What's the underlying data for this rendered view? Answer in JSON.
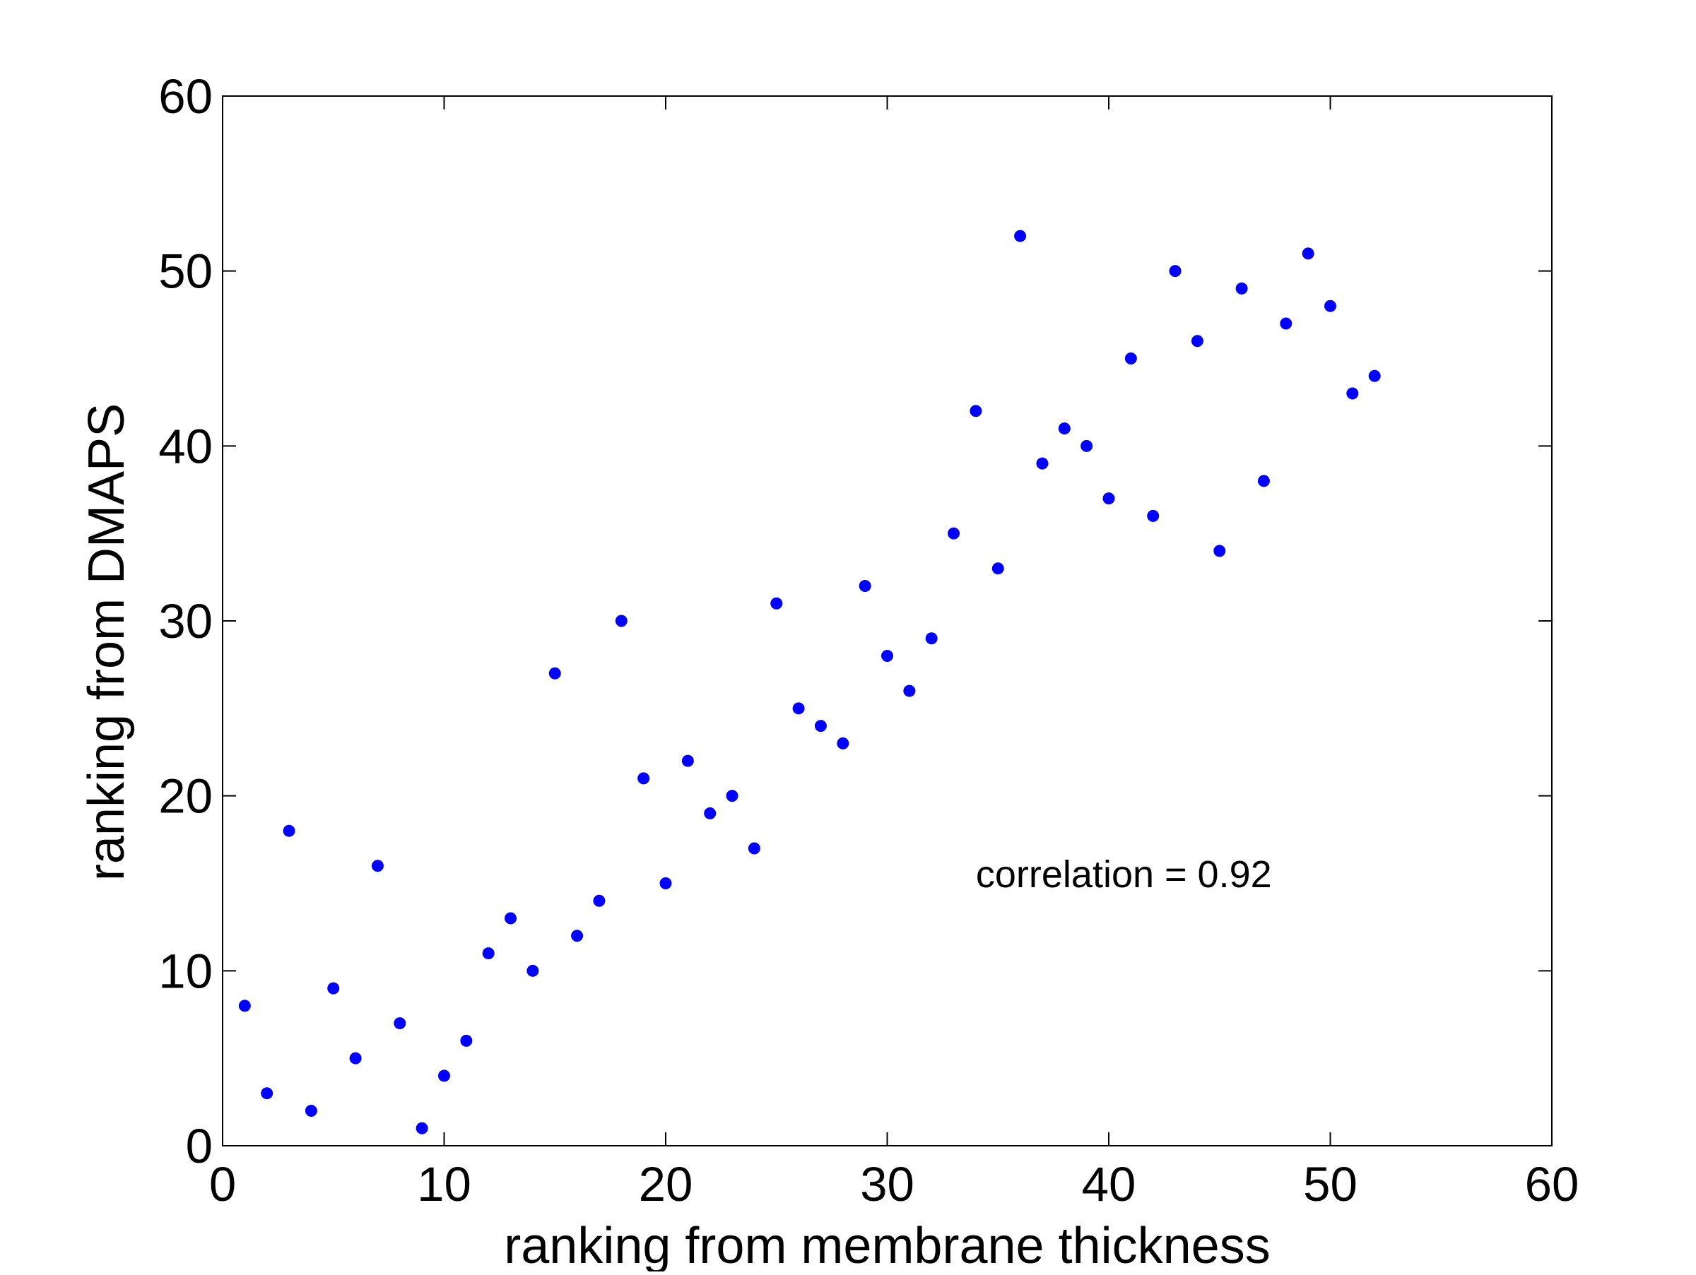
{
  "chart_data": {
    "type": "scatter",
    "title": "",
    "xlabel": "ranking from membrane thickness",
    "ylabel": "ranking from DMAPS",
    "xlim": [
      0,
      60
    ],
    "ylim": [
      0,
      60
    ],
    "x_ticks": [
      0,
      10,
      20,
      30,
      40,
      50,
      60
    ],
    "y_ticks": [
      0,
      10,
      20,
      30,
      40,
      50,
      60
    ],
    "x_tick_labels": [
      "0",
      "10",
      "20",
      "30",
      "40",
      "50",
      "60"
    ],
    "y_tick_labels": [
      "0",
      "10",
      "20",
      "30",
      "40",
      "50",
      "60"
    ],
    "grid": false,
    "legend": "none",
    "annotation": {
      "text": "correlation = 0.92",
      "x": 34,
      "y": 15.5
    },
    "marker_color": "#0000ff",
    "series": [
      {
        "points": [
          [
            1,
            8
          ],
          [
            2,
            3
          ],
          [
            3,
            18
          ],
          [
            4,
            2
          ],
          [
            5,
            9
          ],
          [
            6,
            5
          ],
          [
            7,
            16
          ],
          [
            8,
            7
          ],
          [
            9,
            1
          ],
          [
            10,
            4
          ],
          [
            11,
            6
          ],
          [
            12,
            11
          ],
          [
            13,
            13
          ],
          [
            14,
            10
          ],
          [
            15,
            27
          ],
          [
            16,
            12
          ],
          [
            17,
            14
          ],
          [
            18,
            30
          ],
          [
            19,
            21
          ],
          [
            20,
            15
          ],
          [
            21,
            22
          ],
          [
            22,
            19
          ],
          [
            23,
            20
          ],
          [
            24,
            17
          ],
          [
            25,
            31
          ],
          [
            26,
            25
          ],
          [
            27,
            24
          ],
          [
            28,
            23
          ],
          [
            29,
            32
          ],
          [
            30,
            28
          ],
          [
            31,
            26
          ],
          [
            32,
            29
          ],
          [
            33,
            35
          ],
          [
            34,
            42
          ],
          [
            35,
            33
          ],
          [
            36,
            52
          ],
          [
            37,
            39
          ],
          [
            38,
            41
          ],
          [
            39,
            40
          ],
          [
            40,
            37
          ],
          [
            41,
            45
          ],
          [
            42,
            36
          ],
          [
            43,
            50
          ],
          [
            44,
            46
          ],
          [
            45,
            34
          ],
          [
            46,
            49
          ],
          [
            47,
            38
          ],
          [
            48,
            47
          ],
          [
            49,
            51
          ],
          [
            50,
            48
          ],
          [
            51,
            43
          ],
          [
            52,
            44
          ]
        ]
      }
    ]
  }
}
